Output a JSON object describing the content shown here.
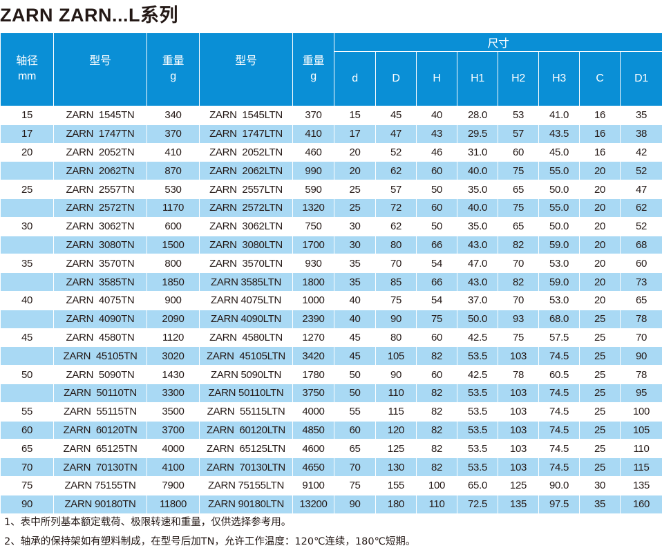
{
  "title": "ZARN ZARN...L系列",
  "header": {
    "shaft": "轴径",
    "shaft_unit": "mm",
    "model": "型号",
    "weight": "重量",
    "weight_unit": "g",
    "model2": "型号",
    "weight2": "重量",
    "weight2_unit": "g",
    "dims": "尺寸",
    "dim_cols": [
      "d",
      "D",
      "H",
      "H1",
      "H2",
      "H3",
      "C",
      "D1"
    ]
  },
  "rows": [
    [
      "15",
      "ZARN  1545TN",
      "340",
      "ZARN  1545LTN",
      "370",
      "15",
      "45",
      "40",
      "28.0",
      "53",
      "41.0",
      "16",
      "35"
    ],
    [
      "17",
      "ZARN  1747TN",
      "370",
      "ZARN  1747LTN",
      "410",
      "17",
      "47",
      "43",
      "29.5",
      "57",
      "43.5",
      "16",
      "38"
    ],
    [
      "20",
      "ZARN  2052TN",
      "410",
      "ZARN  2052LTN",
      "460",
      "20",
      "52",
      "46",
      "31.0",
      "60",
      "45.0",
      "16",
      "42"
    ],
    [
      "",
      "ZARN  2062TN",
      "870",
      "ZARN  2062LTN",
      "990",
      "20",
      "62",
      "60",
      "40.0",
      "75",
      "55.0",
      "20",
      "52"
    ],
    [
      "25",
      "ZARN  2557TN",
      "530",
      "ZARN  2557LTN",
      "590",
      "25",
      "57",
      "50",
      "35.0",
      "65",
      "50.0",
      "20",
      "47"
    ],
    [
      "",
      "ZARN  2572TN",
      "1170",
      "ZARN  2572LTN",
      "1320",
      "25",
      "72",
      "60",
      "40.0",
      "75",
      "55.0",
      "20",
      "62"
    ],
    [
      "30",
      "ZARN  3062TN",
      "600",
      "ZARN  3062LTN",
      "750",
      "30",
      "62",
      "50",
      "35.0",
      "65",
      "50.0",
      "20",
      "52"
    ],
    [
      "",
      "ZARN  3080TN",
      "1500",
      "ZARN  3080LTN",
      "1700",
      "30",
      "80",
      "66",
      "43.0",
      "82",
      "59.0",
      "20",
      "68"
    ],
    [
      "35",
      "ZARN  3570TN",
      "800",
      "ZARN  3570LTN",
      "930",
      "35",
      "70",
      "54",
      "47.0",
      "70",
      "53.0",
      "20",
      "60"
    ],
    [
      "",
      "ZARN  3585TN",
      "1850",
      "ZARN 3585LTN",
      "1800",
      "35",
      "85",
      "66",
      "43.0",
      "82",
      "59.0",
      "20",
      "73"
    ],
    [
      "40",
      "ZARN  4075TN",
      "900",
      "ZARN 4075LTN",
      "1000",
      "40",
      "75",
      "54",
      "37.0",
      "70",
      "53.0",
      "20",
      "65"
    ],
    [
      "",
      "ZARN  4090TN",
      "2090",
      "ZARN 4090LTN",
      "2390",
      "40",
      "90",
      "75",
      "50.0",
      "93",
      "68.0",
      "25",
      "78"
    ],
    [
      "45",
      "ZARN  4580TN",
      "1120",
      "ZARN  4580LTN",
      "1270",
      "45",
      "80",
      "60",
      "42.5",
      "75",
      "57.5",
      "25",
      "70"
    ],
    [
      "",
      "ZARN  45105TN",
      "3020",
      "ZARN  45105LTN",
      "3420",
      "45",
      "105",
      "82",
      "53.5",
      "103",
      "74.5",
      "25",
      "90"
    ],
    [
      "50",
      "ZARN  5090TN",
      "1430",
      "ZARN 5090LTN",
      "1780",
      "50",
      "90",
      "60",
      "42.5",
      "78",
      "60.5",
      "25",
      "78"
    ],
    [
      "",
      "ZARN  50110TN",
      "3300",
      "ZARN 50110LTN",
      "3750",
      "50",
      "110",
      "82",
      "53.5",
      "103",
      "74.5",
      "25",
      "95"
    ],
    [
      "55",
      "ZARN  55115TN",
      "3500",
      "ZARN  55115LTN",
      "4000",
      "55",
      "115",
      "82",
      "53.5",
      "103",
      "74.5",
      "25",
      "100"
    ],
    [
      "60",
      "ZARN  60120TN",
      "3700",
      "ZARN  60120LTN",
      "4850",
      "60",
      "120",
      "82",
      "53.5",
      "103",
      "74.5",
      "25",
      "105"
    ],
    [
      "65",
      "ZARN  65125TN",
      "4000",
      "ZARN  65125LTN",
      "4600",
      "65",
      "125",
      "82",
      "53.5",
      "103",
      "74.5",
      "25",
      "110"
    ],
    [
      "70",
      "ZARN  70130TN",
      "4100",
      "ZARN  70130LTN",
      "4650",
      "70",
      "130",
      "82",
      "53.5",
      "103",
      "74.5",
      "25",
      "115"
    ],
    [
      "75",
      "ZARN 75155TN",
      "7900",
      "ZARN 75155LTN",
      "9100",
      "75",
      "155",
      "100",
      "65.0",
      "125",
      "90.0",
      "30",
      "135"
    ],
    [
      "90",
      "ZARN 90180TN",
      "11800",
      "ZARN 90180LTN",
      "13200",
      "90",
      "180",
      "110",
      "72.5",
      "135",
      "97.5",
      "35",
      "160"
    ]
  ],
  "notes": [
    "1、表中所列基本额定载荷、极限转速和重量，仅供选择参考用。",
    "2、轴承的保持架如有塑料制成，在型号后加TN，允许工作温度：120℃连续，180℃短期。"
  ],
  "colors": {
    "header": "#0a8fd6",
    "alt_row": "#a9d9f4"
  }
}
